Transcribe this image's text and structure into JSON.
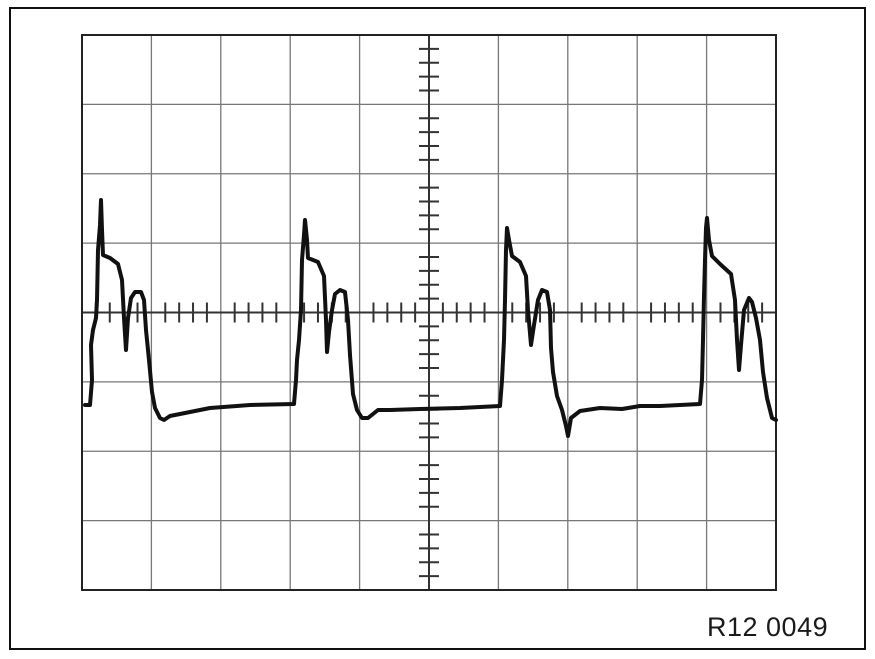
{
  "figure": {
    "reference": "R12 0049",
    "trace_color": "#111111",
    "grid_color": "#777777",
    "graticule": {
      "columns": 10,
      "rows": 8,
      "minor_ticks_per_division": 5
    }
  }
}
